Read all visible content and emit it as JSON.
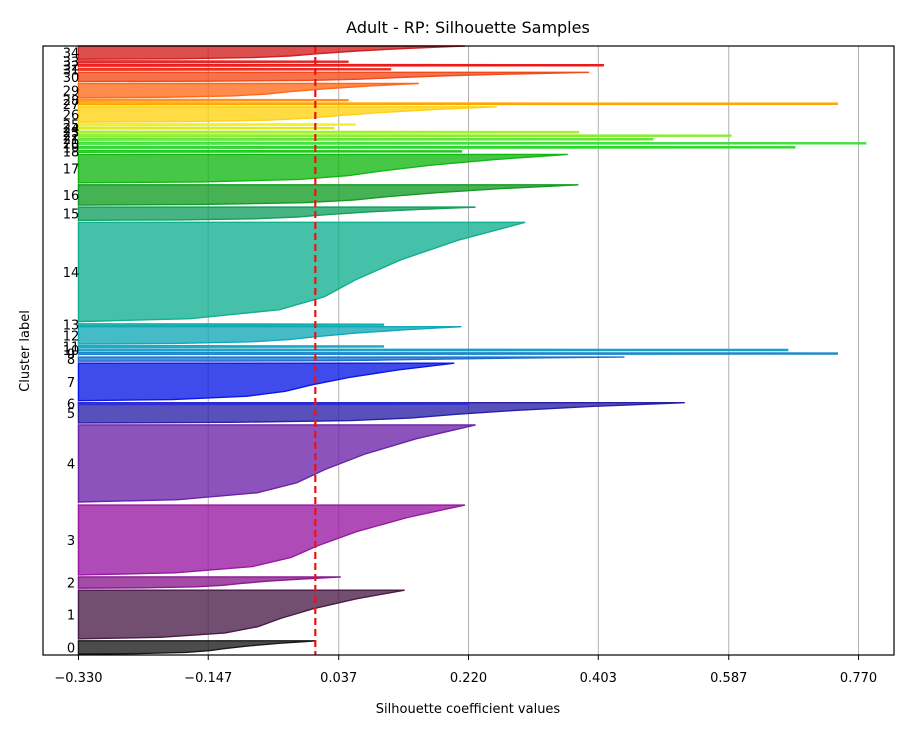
{
  "chart_data": {
    "type": "silhouette",
    "title": "Adult - RP: Silhouette Samples",
    "xlabel": "Silhouette coefficient values",
    "ylabel": "Cluster label",
    "xlim": [
      -0.38,
      0.82
    ],
    "xticks": [
      {
        "value": -0.33,
        "label": "−0.330"
      },
      {
        "value": -0.147,
        "label": "−0.147"
      },
      {
        "value": 0.037,
        "label": "0.037"
      },
      {
        "value": 0.22,
        "label": "0.220"
      },
      {
        "value": 0.403,
        "label": "0.403"
      },
      {
        "value": 0.587,
        "label": "0.587"
      },
      {
        "value": 0.77,
        "label": "0.770"
      }
    ],
    "grid": "vertical",
    "average_silhouette": 0.004,
    "average_line_color": "#ee1111",
    "y_total": 600,
    "clusters": [
      {
        "label": "0",
        "y0": 0,
        "size": 13,
        "max": 0.005,
        "min": -0.33,
        "color": "#1a1a1a"
      },
      {
        "label": "1",
        "y0": 15,
        "size": 48,
        "max": 0.13,
        "min": -0.33,
        "color": "#4a1c48"
      },
      {
        "label": "2",
        "y0": 65,
        "size": 11,
        "max": 0.04,
        "min": -0.33,
        "color": "#8a1a90"
      },
      {
        "label": "3",
        "y0": 78,
        "size": 69,
        "max": 0.215,
        "min": -0.33,
        "color": "#9818a2"
      },
      {
        "label": "4",
        "y0": 150,
        "size": 76,
        "max": 0.23,
        "min": -0.33,
        "color": "#6a22a8"
      },
      {
        "label": "5",
        "y0": 228,
        "size": 20,
        "max": 0.525,
        "min": -0.33,
        "color": "#2a20a8"
      },
      {
        "label": "6",
        "y0": 246,
        "size": 2,
        "max": 0.22,
        "min": -0.33,
        "color": "#2d2dd8"
      },
      {
        "label": "7",
        "y0": 250,
        "size": 37,
        "max": 0.2,
        "min": -0.33,
        "color": "#0a18e6"
      },
      {
        "label": "8",
        "y0": 289,
        "size": 4,
        "max": 0.44,
        "min": -0.33,
        "color": "#1a70d0"
      },
      {
        "label": "9",
        "y0": 295,
        "size": 3,
        "max": 0.74,
        "min": -0.33,
        "color": "#1a88cc"
      },
      {
        "label": "10",
        "y0": 299,
        "size": 2,
        "max": 0.67,
        "min": -0.33,
        "color": "#1aa0c8"
      },
      {
        "label": "11",
        "y0": 303,
        "size": 1,
        "max": 0.1,
        "min": -0.33,
        "color": "#1aa8c0"
      },
      {
        "label": "12",
        "y0": 306,
        "size": 17,
        "max": 0.21,
        "min": -0.33,
        "color": "#12a8b8"
      },
      {
        "label": "13",
        "y0": 324,
        "size": 2,
        "max": 0.1,
        "min": -0.33,
        "color": "#10b0a8"
      },
      {
        "label": "14",
        "y0": 328,
        "size": 98,
        "max": 0.3,
        "min": -0.33,
        "color": "#10b090"
      },
      {
        "label": "15",
        "y0": 428,
        "size": 13,
        "max": 0.23,
        "min": -0.33,
        "color": "#12a060"
      },
      {
        "label": "16",
        "y0": 443,
        "size": 20,
        "max": 0.375,
        "min": -0.33,
        "color": "#139c22"
      },
      {
        "label": "17",
        "y0": 465,
        "size": 28,
        "max": 0.36,
        "min": -0.33,
        "color": "#12b812"
      },
      {
        "label": "18",
        "y0": 495,
        "size": 2,
        "max": 0.21,
        "min": -0.33,
        "color": "#22c822"
      },
      {
        "label": "19",
        "y0": 499,
        "size": 2,
        "max": 0.68,
        "min": -0.33,
        "color": "#2ad82a"
      },
      {
        "label": "20",
        "y0": 503,
        "size": 2,
        "max": 0.78,
        "min": -0.33,
        "color": "#40e040"
      },
      {
        "label": "21",
        "y0": 507,
        "size": 2,
        "max": 0.48,
        "min": -0.33,
        "color": "#60e830"
      },
      {
        "label": "22",
        "y0": 511,
        "size": 1,
        "max": 0.59,
        "min": -0.33,
        "color": "#8aee30"
      },
      {
        "label": "23",
        "y0": 514,
        "size": 2,
        "max": 0.375,
        "min": -0.33,
        "color": "#a6f028"
      },
      {
        "label": "24",
        "y0": 518,
        "size": 2,
        "max": 0.03,
        "min": -0.33,
        "color": "#e0e820"
      },
      {
        "label": "25",
        "y0": 522,
        "size": 1,
        "max": 0.06,
        "min": -0.33,
        "color": "#f0f028"
      },
      {
        "label": "26",
        "y0": 525,
        "size": 15,
        "max": 0.26,
        "min": -0.33,
        "color": "#ffd210"
      },
      {
        "label": "27",
        "y0": 542,
        "size": 2,
        "max": 0.74,
        "min": -0.33,
        "color": "#ffa500"
      },
      {
        "label": "28",
        "y0": 546,
        "size": 1,
        "max": 0.05,
        "min": -0.33,
        "color": "#ff9020"
      },
      {
        "label": "29",
        "y0": 549,
        "size": 14,
        "max": 0.15,
        "min": -0.33,
        "color": "#ff6a1a"
      },
      {
        "label": "30",
        "y0": 565,
        "size": 9,
        "max": 0.39,
        "min": -0.33,
        "color": "#f24a1a"
      },
      {
        "label": "31",
        "y0": 576,
        "size": 2,
        "max": 0.11,
        "min": -0.33,
        "color": "#ee2a1a"
      },
      {
        "label": "32",
        "y0": 580,
        "size": 2,
        "max": 0.41,
        "min": -0.33,
        "color": "#ee1a1a"
      },
      {
        "label": "33",
        "y0": 584,
        "size": 1,
        "max": 0.05,
        "min": -0.33,
        "color": "#dd2a2a"
      },
      {
        "label": "34",
        "y0": 587,
        "size": 13,
        "max": 0.215,
        "min": -0.33,
        "color": "#d41e1e"
      }
    ]
  }
}
